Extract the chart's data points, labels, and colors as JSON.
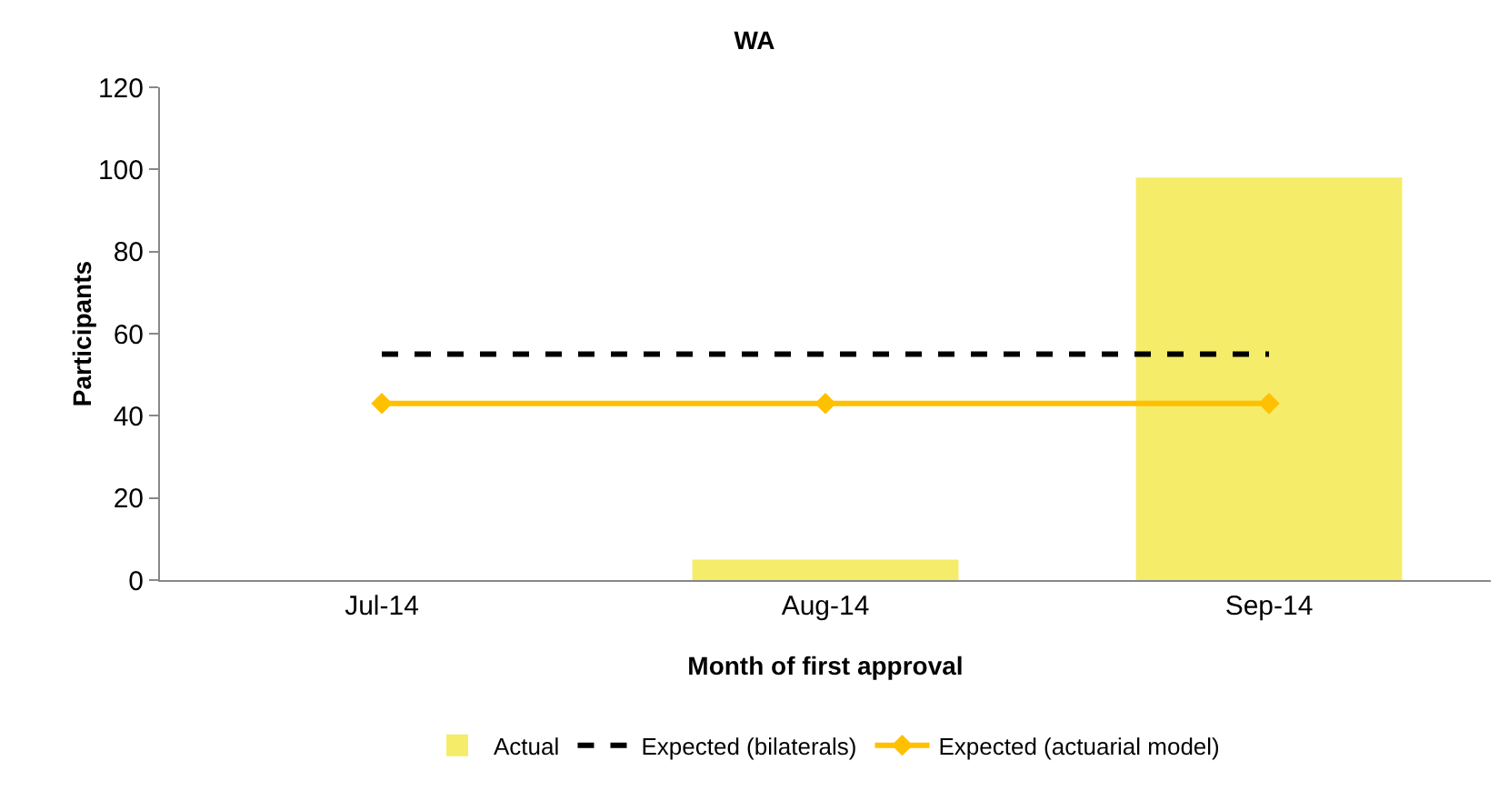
{
  "chart_data": {
    "type": "bar",
    "title": "WA",
    "xlabel": "Month of first approval",
    "ylabel": "Participants",
    "categories": [
      "Jul-14",
      "Aug-14",
      "Sep-14"
    ],
    "series": [
      {
        "name": "Actual",
        "color": "#f5ec6a",
        "values": [
          0,
          5,
          98
        ]
      },
      {
        "name": "Expected (bilaterals)",
        "type": "line",
        "color": "#000000",
        "line_style": "dashed",
        "marker": "none",
        "values": [
          55,
          55,
          55
        ]
      },
      {
        "name": "Expected (actuarial model)",
        "type": "line",
        "color": "#ffc000",
        "line_style": "solid",
        "marker": "diamond",
        "values": [
          43,
          43,
          43
        ]
      }
    ],
    "ylim": [
      0,
      120
    ],
    "yticks": [
      0,
      20,
      40,
      60,
      80,
      100,
      120
    ],
    "grid": false,
    "legend": "bottom"
  }
}
